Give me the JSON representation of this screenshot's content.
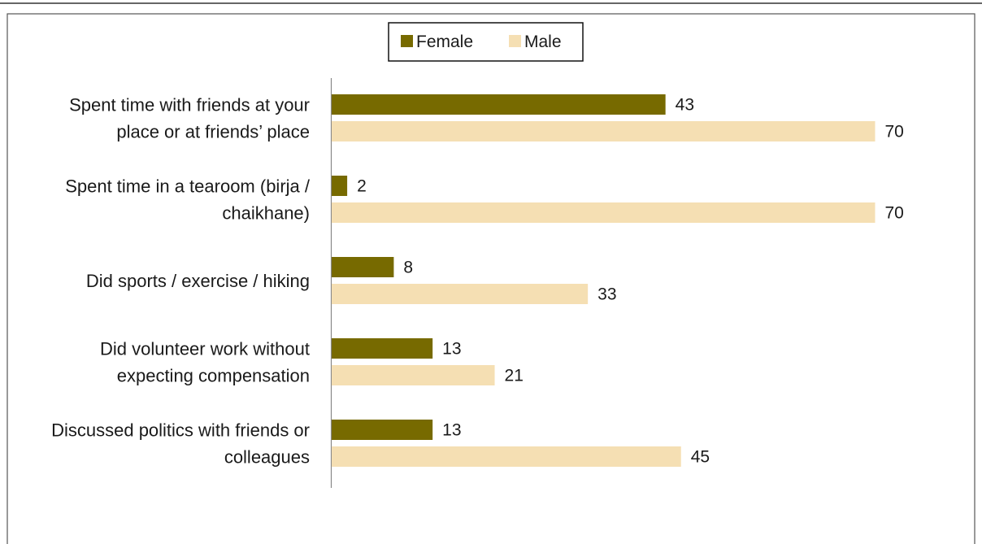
{
  "chart_data": {
    "type": "bar",
    "orientation": "horizontal",
    "categories": [
      [
        "Spent time with friends at your",
        "place or at friends’ place"
      ],
      [
        "Spent time in a tearoom (birja /",
        "chaikhane)"
      ],
      [
        "Did sports / exercise / hiking"
      ],
      [
        "Did volunteer work without",
        "expecting compensation"
      ],
      [
        "Discussed politics with friends or",
        "colleagues"
      ]
    ],
    "series": [
      {
        "name": "Female",
        "color": "#776a00",
        "values": [
          43,
          2,
          8,
          13,
          13
        ]
      },
      {
        "name": "Male",
        "color": "#f5dfb3",
        "values": [
          70,
          70,
          33,
          21,
          45
        ]
      }
    ],
    "xlim": [
      0,
      100
    ],
    "grid": false,
    "legend_position": "top-center",
    "data_labels": true
  }
}
